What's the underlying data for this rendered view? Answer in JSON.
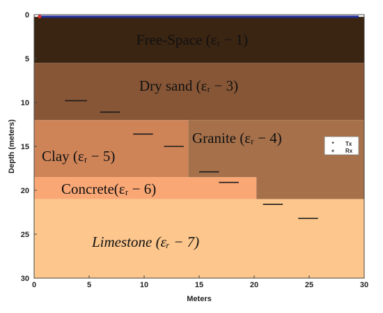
{
  "chart_data": {
    "type": "heatmap",
    "xlabel": "Meters",
    "ylabel": "Depth (meters)",
    "xlim": [
      0,
      30
    ],
    "ylim": [
      0,
      30
    ],
    "y_inverted": true,
    "x_ticks": [
      "0",
      "5",
      "10",
      "15",
      "20",
      "25",
      "30"
    ],
    "y_ticks": [
      "0",
      "5",
      "10",
      "15",
      "20",
      "25",
      "30"
    ],
    "layers": [
      {
        "id": "free-space",
        "label": "Free-Space (εᵣ − 1)",
        "color": "#3a2412",
        "text_color": "#ffffff",
        "polygon": [
          [
            0,
            0.25
          ],
          [
            30,
            0.25
          ],
          [
            30,
            5.5
          ],
          [
            0,
            5.5
          ]
        ]
      },
      {
        "id": "dry-sand",
        "label": "Dry sand (εᵣ − 3)",
        "color": "#875636",
        "text_color": "#ffffff",
        "polygon": [
          [
            0,
            5.5
          ],
          [
            30,
            5.5
          ],
          [
            30,
            12
          ],
          [
            0,
            12
          ]
        ]
      },
      {
        "id": "granite",
        "label": "Granite  (εᵣ − 4)",
        "color": "#a5704a",
        "text_color": "#111111",
        "polygon": [
          [
            14,
            12
          ],
          [
            30,
            12
          ],
          [
            30,
            21
          ],
          [
            20.2,
            21
          ],
          [
            20.2,
            18.5
          ],
          [
            14,
            18.5
          ]
        ]
      },
      {
        "id": "clay",
        "label": "Clay (εᵣ − 5)",
        "color": "#cf8458",
        "text_color": "#111111",
        "polygon": [
          [
            0,
            12
          ],
          [
            14,
            12
          ],
          [
            14,
            18.5
          ],
          [
            0,
            18.5
          ]
        ]
      },
      {
        "id": "concrete",
        "label": "Concrete(εᵣ − 6)",
        "color": "#f9a775",
        "text_color": "#111111",
        "polygon": [
          [
            0,
            18.5
          ],
          [
            20.2,
            18.5
          ],
          [
            20.2,
            21
          ],
          [
            0,
            21
          ]
        ]
      },
      {
        "id": "limestone",
        "label": "Limestone (εᵣ − 7)",
        "color": "#fcc68c",
        "text_color": "#111111",
        "polygon": [
          [
            0,
            21
          ],
          [
            30,
            21
          ],
          [
            30,
            30
          ],
          [
            0,
            30
          ]
        ]
      }
    ],
    "targets": [
      {
        "x1": 2.8,
        "x2": 4.8,
        "y": 9.8
      },
      {
        "x1": 6.0,
        "x2": 7.8,
        "y": 11.1
      },
      {
        "x1": 9.0,
        "x2": 10.8,
        "y": 13.6
      },
      {
        "x1": 11.8,
        "x2": 13.6,
        "y": 15.0
      },
      {
        "x1": 15.0,
        "x2": 16.8,
        "y": 17.9
      },
      {
        "x1": 16.8,
        "x2": 18.6,
        "y": 19.1
      },
      {
        "x1": 20.8,
        "x2": 22.6,
        "y": 21.6
      },
      {
        "x1": 24.0,
        "x2": 25.8,
        "y": 23.2
      }
    ],
    "transceivers": {
      "y": 0.15,
      "x_from": 0.5,
      "x_to": 29.5
    },
    "legend": {
      "position": "right",
      "entries": [
        {
          "symbol": "*",
          "label": "Tx",
          "color": "#e02828"
        },
        {
          "symbol": "+",
          "label": "Rx",
          "color": "#2030a0"
        }
      ]
    }
  }
}
